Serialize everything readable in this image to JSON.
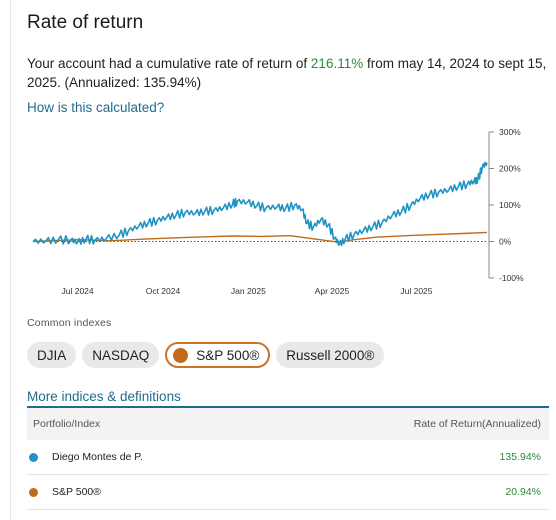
{
  "header": {
    "title": "Rate of return"
  },
  "summary": {
    "prefix": "Your account had a cumulative rate of return of ",
    "cumulative": "216.11%",
    "middle": " from may 14, 2024 to sept 15, 2025. (Annualized: 135.94%)"
  },
  "how_link": "How is this calculated?",
  "colors": {
    "portfolio": "#1e93c4",
    "benchmark": "#c26a1b",
    "positive": "#2e8b3a",
    "link": "#1f6b8e"
  },
  "chart_data": {
    "type": "line",
    "x_tick_labels": [
      "Jul 2024",
      "Oct 2024",
      "Jan 2025",
      "Apr 2025",
      "Jul 2025"
    ],
    "y_tick_labels": [
      "300%",
      "200%",
      "100%",
      "0%",
      "-100%"
    ],
    "y_ticks": [
      300,
      200,
      100,
      0,
      -100
    ],
    "ylim": [
      -100,
      300
    ],
    "xlim": [
      "2024-05-14",
      "2025-09-15"
    ],
    "x_ticks": [
      "2024-07-01",
      "2024-10-01",
      "2025-01-01",
      "2025-04-01",
      "2025-07-01"
    ],
    "zero_line": "dotted",
    "series": [
      {
        "values": [
          [
            "2024-05-14",
            0
          ],
          [
            "2024-05-28",
            2
          ],
          [
            "2024-06-10",
            4
          ],
          [
            "2024-06-24",
            5
          ],
          [
            "2024-07-01",
            -2
          ],
          [
            "2024-07-10",
            6
          ],
          [
            "2024-07-20",
            4
          ],
          [
            "2024-08-01",
            8
          ],
          [
            "2024-08-15",
            18
          ],
          [
            "2024-08-25",
            30
          ],
          [
            "2024-09-05",
            42
          ],
          [
            "2024-09-15",
            50
          ],
          [
            "2024-09-25",
            58
          ],
          [
            "2024-10-05",
            66
          ],
          [
            "2024-10-15",
            72
          ],
          [
            "2024-10-25",
            80
          ],
          [
            "2024-11-05",
            78
          ],
          [
            "2024-11-15",
            82
          ],
          [
            "2024-11-25",
            86
          ],
          [
            "2024-12-05",
            92
          ],
          [
            "2024-12-15",
            102
          ],
          [
            "2024-12-20",
            110
          ],
          [
            "2024-12-31",
            108
          ],
          [
            "2025-01-10",
            98
          ],
          [
            "2025-01-20",
            92
          ],
          [
            "2025-02-01",
            95
          ],
          [
            "2025-02-10",
            90
          ],
          [
            "2025-02-20",
            100
          ],
          [
            "2025-02-28",
            88
          ],
          [
            "2025-03-05",
            50
          ],
          [
            "2025-03-12",
            40
          ],
          [
            "2025-03-20",
            60
          ],
          [
            "2025-03-28",
            45
          ],
          [
            "2025-04-04",
            10
          ],
          [
            "2025-04-09",
            -8
          ],
          [
            "2025-04-15",
            5
          ],
          [
            "2025-04-25",
            20
          ],
          [
            "2025-05-05",
            30
          ],
          [
            "2025-05-15",
            40
          ],
          [
            "2025-05-25",
            52
          ],
          [
            "2025-06-05",
            72
          ],
          [
            "2025-06-15",
            82
          ],
          [
            "2025-06-25",
            100
          ],
          [
            "2025-07-05",
            118
          ],
          [
            "2025-07-15",
            128
          ],
          [
            "2025-07-25",
            135
          ],
          [
            "2025-08-05",
            142
          ],
          [
            "2025-08-15",
            150
          ],
          [
            "2025-08-25",
            158
          ],
          [
            "2025-09-01",
            165
          ],
          [
            "2025-09-05",
            168
          ],
          [
            "2025-09-10",
            205
          ],
          [
            "2025-09-15",
            216
          ]
        ]
      },
      {
        "values": [
          [
            "2024-05-14",
            0
          ],
          [
            "2024-07-01",
            5
          ],
          [
            "2024-08-05",
            2
          ],
          [
            "2024-09-15",
            7
          ],
          [
            "2024-10-15",
            10
          ],
          [
            "2024-11-15",
            13
          ],
          [
            "2024-12-15",
            15
          ],
          [
            "2025-01-15",
            14
          ],
          [
            "2025-02-15",
            16
          ],
          [
            "2025-03-10",
            8
          ],
          [
            "2025-04-08",
            -2
          ],
          [
            "2025-04-25",
            5
          ],
          [
            "2025-05-20",
            12
          ],
          [
            "2025-06-20",
            16
          ],
          [
            "2025-07-20",
            19
          ],
          [
            "2025-08-20",
            22
          ],
          [
            "2025-09-15",
            25
          ]
        ]
      }
    ]
  },
  "indexes": {
    "label": "Common indexes",
    "chips": [
      {
        "label": "DJIA",
        "selected": false
      },
      {
        "label": "NASDAQ",
        "selected": false
      },
      {
        "label": "S&P 500®",
        "selected": true
      },
      {
        "label": "Russell 2000®",
        "selected": false
      }
    ]
  },
  "more_link": "More indices & definitions",
  "table": {
    "col1": "Portfolio/Index",
    "col2": "Rate of Return(Annualized)",
    "rows": [
      {
        "name": "Diego Montes de P.",
        "value": "135.94%"
      },
      {
        "name": "S&P 500®",
        "value": "20.94%"
      }
    ]
  }
}
